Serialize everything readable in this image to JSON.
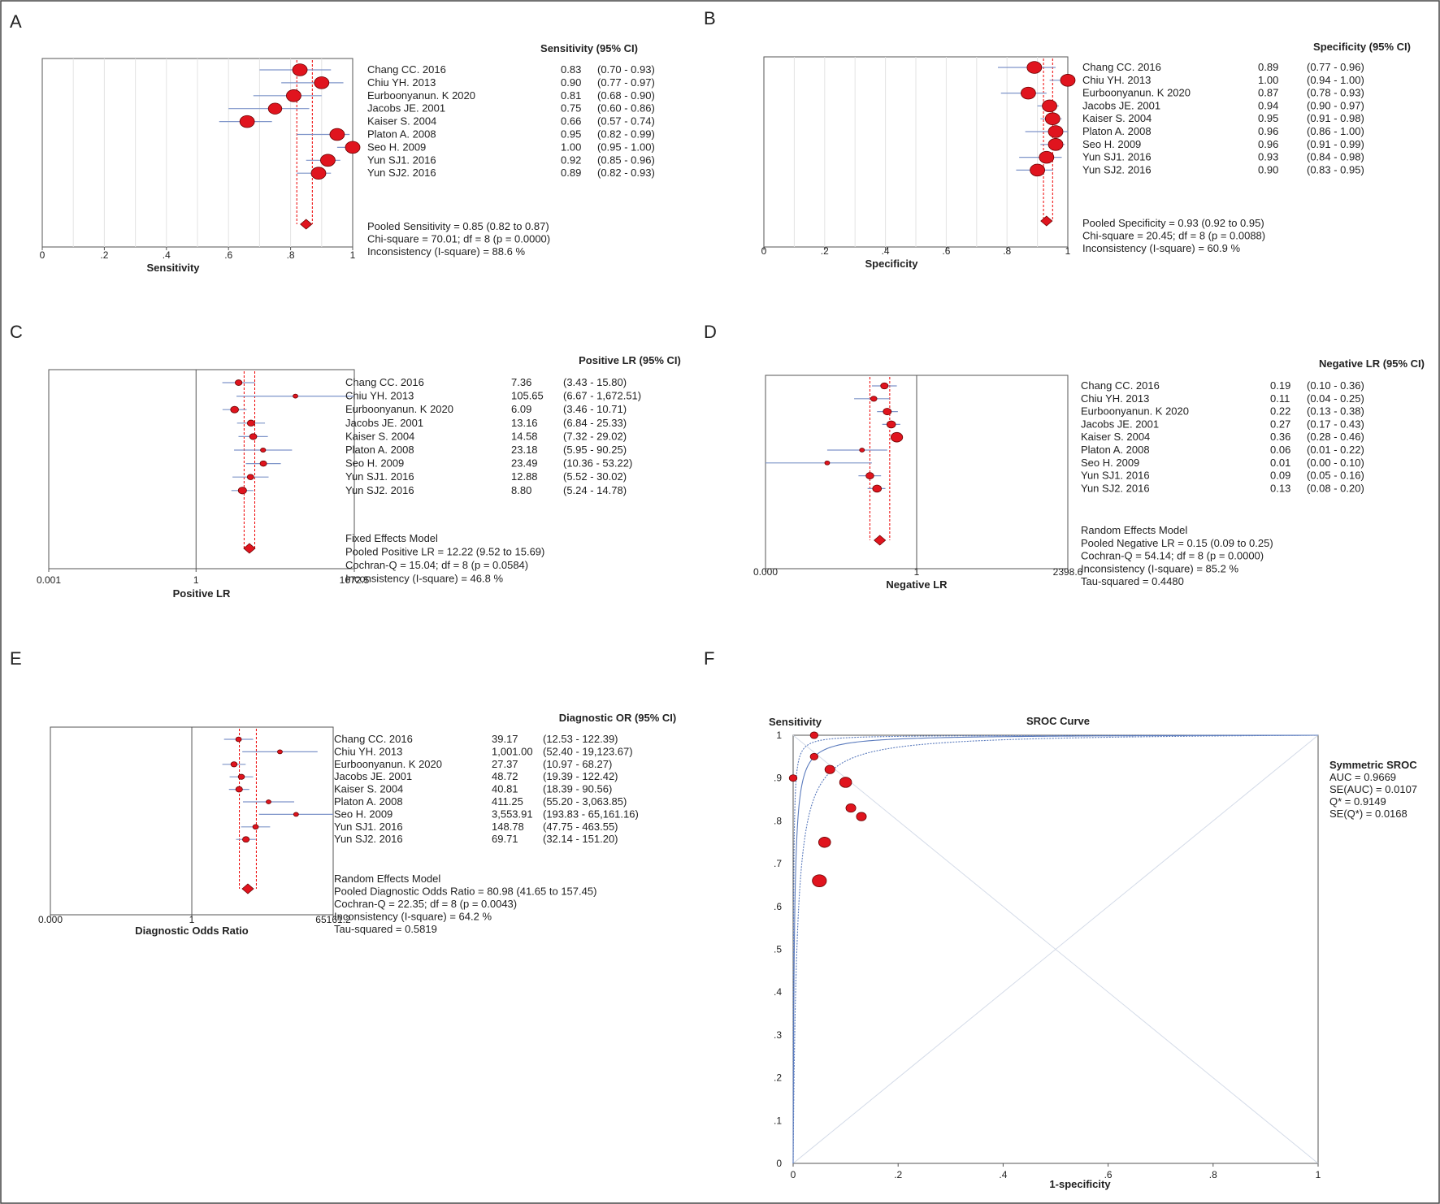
{
  "panels": [
    {
      "letter": "A",
      "type": "forest",
      "scale": "linear",
      "header": "Sensitivity (95% CI)",
      "xlabel": "Sensitivity",
      "ticks": [
        {
          "v": 0,
          "l": "0"
        },
        {
          "v": 0.2,
          "l": ".2"
        },
        {
          "v": 0.4,
          "l": ".4"
        },
        {
          "v": 0.6,
          "l": ".6"
        },
        {
          "v": 0.8,
          "l": ".8"
        },
        {
          "v": 1,
          "l": "1"
        }
      ],
      "min": 0,
      "max": 1,
      "pooled": {
        "est": 0.85,
        "lo": 0.82,
        "hi": 0.87
      },
      "summary": [
        "Pooled Sensitivity = 0.85 (0.82 to 0.87)",
        "Chi-square = 70.01; df = 8 (p = 0.0000)",
        "Inconsistency (I-square) = 88.6 %"
      ],
      "studies": [
        {
          "name": "Chang CC. 2016",
          "est": 0.83,
          "lo": 0.7,
          "hi": 0.93,
          "v": "0.83",
          "ci": "(0.70 - 0.93)"
        },
        {
          "name": "Chiu YH. 2013",
          "est": 0.9,
          "lo": 0.77,
          "hi": 0.97,
          "v": "0.90",
          "ci": "(0.77 - 0.97)"
        },
        {
          "name": "Eurboonyanun. K 2020",
          "est": 0.81,
          "lo": 0.68,
          "hi": 0.9,
          "v": "0.81",
          "ci": "(0.68 - 0.90)"
        },
        {
          "name": "Jacobs JE. 2001",
          "est": 0.75,
          "lo": 0.6,
          "hi": 0.86,
          "v": "0.75",
          "ci": "(0.60 - 0.86)"
        },
        {
          "name": "Kaiser S. 2004",
          "est": 0.66,
          "lo": 0.57,
          "hi": 0.74,
          "v": "0.66",
          "ci": "(0.57 - 0.74)"
        },
        {
          "name": "Platon A. 2008",
          "est": 0.95,
          "lo": 0.82,
          "hi": 0.99,
          "v": "0.95",
          "ci": "(0.82 - 0.99)"
        },
        {
          "name": "Seo H. 2009",
          "est": 1.0,
          "lo": 0.95,
          "hi": 1.0,
          "v": "1.00",
          "ci": "(0.95 - 1.00)"
        },
        {
          "name": "Yun SJ1. 2016",
          "est": 0.92,
          "lo": 0.85,
          "hi": 0.96,
          "v": "0.92",
          "ci": "(0.85 - 0.96)"
        },
        {
          "name": "Yun SJ2. 2016",
          "est": 0.89,
          "lo": 0.82,
          "hi": 0.93,
          "v": "0.89",
          "ci": "(0.82 - 0.93)"
        }
      ]
    },
    {
      "letter": "B",
      "type": "forest",
      "scale": "linear",
      "header": "Specificity (95% CI)",
      "xlabel": "Specificity",
      "ticks": [
        {
          "v": 0,
          "l": "0"
        },
        {
          "v": 0.2,
          "l": ".2"
        },
        {
          "v": 0.4,
          "l": ".4"
        },
        {
          "v": 0.6,
          "l": ".6"
        },
        {
          "v": 0.8,
          "l": ".8"
        },
        {
          "v": 1,
          "l": "1"
        }
      ],
      "min": 0,
      "max": 1,
      "pooled": {
        "est": 0.93,
        "lo": 0.92,
        "hi": 0.95
      },
      "summary": [
        "Pooled Specificity = 0.93 (0.92 to 0.95)",
        "Chi-square = 20.45; df = 8 (p = 0.0088)",
        "Inconsistency (I-square) = 60.9 %"
      ],
      "studies": [
        {
          "name": "Chang CC. 2016",
          "est": 0.89,
          "lo": 0.77,
          "hi": 0.96,
          "v": "0.89",
          "ci": "(0.77 - 0.96)"
        },
        {
          "name": "Chiu YH. 2013",
          "est": 1.0,
          "lo": 0.94,
          "hi": 1.0,
          "v": "1.00",
          "ci": "(0.94 - 1.00)"
        },
        {
          "name": "Eurboonyanun. K 2020",
          "est": 0.87,
          "lo": 0.78,
          "hi": 0.93,
          "v": "0.87",
          "ci": "(0.78 - 0.93)"
        },
        {
          "name": "Jacobs JE. 2001",
          "est": 0.94,
          "lo": 0.9,
          "hi": 0.97,
          "v": "0.94",
          "ci": "(0.90 - 0.97)"
        },
        {
          "name": "Kaiser S. 2004",
          "est": 0.95,
          "lo": 0.91,
          "hi": 0.98,
          "v": "0.95",
          "ci": "(0.91 - 0.98)"
        },
        {
          "name": "Platon A. 2008",
          "est": 0.96,
          "lo": 0.86,
          "hi": 1.0,
          "v": "0.96",
          "ci": "(0.86 - 1.00)"
        },
        {
          "name": "Seo H. 2009",
          "est": 0.96,
          "lo": 0.91,
          "hi": 0.99,
          "v": "0.96",
          "ci": "(0.91 - 0.99)"
        },
        {
          "name": "Yun SJ1. 2016",
          "est": 0.93,
          "lo": 0.84,
          "hi": 0.98,
          "v": "0.93",
          "ci": "(0.84 - 0.98)"
        },
        {
          "name": "Yun SJ2. 2016",
          "est": 0.9,
          "lo": 0.83,
          "hi": 0.95,
          "v": "0.90",
          "ci": "(0.83 - 0.95)"
        }
      ]
    },
    {
      "letter": "C",
      "type": "forest",
      "scale": "log",
      "header": "Positive LR (95% CI)",
      "xlabel": "Positive LR",
      "ticks": [
        {
          "v": 0.001,
          "l": "0.001"
        },
        {
          "v": 1,
          "l": "1"
        },
        {
          "v": 1672.5,
          "l": "1672.5"
        }
      ],
      "min": 0.001,
      "max": 1672.5,
      "pooled": {
        "est": 12.22,
        "lo": 9.52,
        "hi": 15.69
      },
      "summary": [
        "Fixed Effects Model",
        "Pooled Positive LR = 12.22 (9.52 to 15.69)",
        "Cochran-Q = 15.04; df = 8 (p = 0.0584)",
        "Inconsistency (I-square) = 46.8 %"
      ],
      "studies": [
        {
          "name": "Chang CC. 2016",
          "est": 7.36,
          "lo": 3.43,
          "hi": 15.8,
          "v": "7.36",
          "ci": "(3.43 - 15.80)"
        },
        {
          "name": "Chiu YH. 2013",
          "est": 105.65,
          "lo": 6.67,
          "hi": 1672.51,
          "v": "105.65",
          "ci": "(6.67 - 1,672.51)"
        },
        {
          "name": "Eurboonyanun. K 2020",
          "est": 6.09,
          "lo": 3.46,
          "hi": 10.71,
          "v": "6.09",
          "ci": "(3.46 - 10.71)"
        },
        {
          "name": "Jacobs JE. 2001",
          "est": 13.16,
          "lo": 6.84,
          "hi": 25.33,
          "v": "13.16",
          "ci": "(6.84 - 25.33)"
        },
        {
          "name": "Kaiser S. 2004",
          "est": 14.58,
          "lo": 7.32,
          "hi": 29.02,
          "v": "14.58",
          "ci": "(7.32 - 29.02)"
        },
        {
          "name": "Platon A. 2008",
          "est": 23.18,
          "lo": 5.95,
          "hi": 90.25,
          "v": "23.18",
          "ci": "(5.95 - 90.25)"
        },
        {
          "name": "Seo H. 2009",
          "est": 23.49,
          "lo": 10.36,
          "hi": 53.22,
          "v": "23.49",
          "ci": "(10.36 - 53.22)"
        },
        {
          "name": "Yun SJ1. 2016",
          "est": 12.88,
          "lo": 5.52,
          "hi": 30.02,
          "v": "12.88",
          "ci": "(5.52 - 30.02)"
        },
        {
          "name": "Yun SJ2. 2016",
          "est": 8.8,
          "lo": 5.24,
          "hi": 14.78,
          "v": "8.80",
          "ci": "(5.24 - 14.78)"
        }
      ]
    },
    {
      "letter": "D",
      "type": "forest",
      "scale": "log",
      "header": "Negative LR (95% CI)",
      "xlabel": "Negative LR",
      "ticks": [
        {
          "v": 0.000417,
          "l": "0.000"
        },
        {
          "v": 1,
          "l": "1"
        },
        {
          "v": 2398.6,
          "l": "2398.6"
        }
      ],
      "min": 0.000417,
      "max": 2398.6,
      "pooled": {
        "est": 0.15,
        "lo": 0.09,
        "hi": 0.25
      },
      "summary": [
        "Random Effects Model",
        "Pooled Negative LR = 0.15 (0.09 to 0.25)",
        "Cochran-Q = 54.14; df = 8 (p = 0.0000)",
        "Inconsistency (I-square) = 85.2 %",
        "Tau-squared = 0.4480"
      ],
      "studies": [
        {
          "name": "Chang CC. 2016",
          "est": 0.19,
          "lo": 0.1,
          "hi": 0.36,
          "v": "0.19",
          "ci": "(0.10 - 0.36)"
        },
        {
          "name": "Chiu YH. 2013",
          "est": 0.11,
          "lo": 0.04,
          "hi": 0.25,
          "v": "0.11",
          "ci": "(0.04 - 0.25)"
        },
        {
          "name": "Eurboonyanun. K 2020",
          "est": 0.22,
          "lo": 0.13,
          "hi": 0.38,
          "v": "0.22",
          "ci": "(0.13 - 0.38)"
        },
        {
          "name": "Jacobs JE. 2001",
          "est": 0.27,
          "lo": 0.17,
          "hi": 0.43,
          "v": "0.27",
          "ci": "(0.17 - 0.43)"
        },
        {
          "name": "Kaiser S. 2004",
          "est": 0.36,
          "lo": 0.28,
          "hi": 0.46,
          "v": "0.36",
          "ci": "(0.28 - 0.46)"
        },
        {
          "name": "Platon A. 2008",
          "est": 0.06,
          "lo": 0.01,
          "hi": 0.22,
          "v": "0.06",
          "ci": "(0.01 - 0.22)"
        },
        {
          "name": "Seo H. 2009",
          "est": 0.01,
          "lo": 0.0004,
          "hi": 0.1,
          "v": "0.01",
          "ci": "(0.00 - 0.10)"
        },
        {
          "name": "Yun SJ1. 2016",
          "est": 0.09,
          "lo": 0.05,
          "hi": 0.16,
          "v": "0.09",
          "ci": "(0.05 - 0.16)"
        },
        {
          "name": "Yun SJ2. 2016",
          "est": 0.13,
          "lo": 0.08,
          "hi": 0.2,
          "v": "0.13",
          "ci": "(0.08 - 0.20)"
        }
      ]
    },
    {
      "letter": "E",
      "type": "forest",
      "scale": "log",
      "header": "Diagnostic OR (95% CI)",
      "xlabel": "Diagnostic Odds Ratio",
      "ticks": [
        {
          "v": 1.53e-05,
          "l": "0.000"
        },
        {
          "v": 1,
          "l": "1"
        },
        {
          "v": 65161.2,
          "l": "65161.2"
        }
      ],
      "min": 1.53e-05,
      "max": 65161.2,
      "pooled": {
        "est": 80.98,
        "lo": 41.65,
        "hi": 157.45
      },
      "summary": [
        "Random Effects Model",
        "Pooled Diagnostic Odds Ratio = 80.98 (41.65 to 157.45)",
        "Cochran-Q = 22.35; df = 8 (p = 0.0043)",
        "Inconsistency (I-square) = 64.2 %",
        "Tau-squared = 0.5819"
      ],
      "studies": [
        {
          "name": "Chang CC. 2016",
          "est": 39.17,
          "lo": 12.53,
          "hi": 122.39,
          "v": "39.17",
          "ci": "(12.53 - 122.39)"
        },
        {
          "name": "Chiu YH. 2013",
          "est": 1001.0,
          "lo": 52.4,
          "hi": 19123.67,
          "v": "1,001.00",
          "ci": "(52.40 - 19,123.67)"
        },
        {
          "name": "Eurboonyanun. K 2020",
          "est": 27.37,
          "lo": 10.97,
          "hi": 68.27,
          "v": "27.37",
          "ci": "(10.97 - 68.27)"
        },
        {
          "name": "Jacobs JE. 2001",
          "est": 48.72,
          "lo": 19.39,
          "hi": 122.42,
          "v": "48.72",
          "ci": "(19.39 - 122.42)"
        },
        {
          "name": "Kaiser S. 2004",
          "est": 40.81,
          "lo": 18.39,
          "hi": 90.56,
          "v": "40.81",
          "ci": "(18.39 - 90.56)"
        },
        {
          "name": "Platon A. 2008",
          "est": 411.25,
          "lo": 55.2,
          "hi": 3063.85,
          "v": "411.25",
          "ci": "(55.20 - 3,063.85)"
        },
        {
          "name": "Seo H. 2009",
          "est": 3553.91,
          "lo": 193.83,
          "hi": 65161.16,
          "v": "3,553.91",
          "ci": "(193.83 - 65,161.16)"
        },
        {
          "name": "Yun SJ1. 2016",
          "est": 148.78,
          "lo": 47.75,
          "hi": 463.55,
          "v": "148.78",
          "ci": "(47.75 - 463.55)"
        },
        {
          "name": "Yun SJ2. 2016",
          "est": 69.71,
          "lo": 32.14,
          "hi": 151.2,
          "v": "69.71",
          "ci": "(32.14 - 151.20)"
        }
      ]
    }
  ],
  "sroc": {
    "letter": "F",
    "title": "SROC Curve",
    "ylabel": "Sensitivity",
    "xlabel": "1-specificity",
    "xticks": [
      {
        "v": 0,
        "l": "0"
      },
      {
        "v": 0.2,
        "l": ".2"
      },
      {
        "v": 0.4,
        "l": ".4"
      },
      {
        "v": 0.6,
        "l": ".6"
      },
      {
        "v": 0.8,
        "l": ".8"
      },
      {
        "v": 1,
        "l": "1"
      }
    ],
    "yticks": [
      {
        "v": 0,
        "l": "0"
      },
      {
        "v": 0.1,
        "l": ".1"
      },
      {
        "v": 0.2,
        "l": ".2"
      },
      {
        "v": 0.3,
        "l": ".3"
      },
      {
        "v": 0.4,
        "l": ".4"
      },
      {
        "v": 0.5,
        "l": ".5"
      },
      {
        "v": 0.6,
        "l": ".6"
      },
      {
        "v": 0.7,
        "l": ".7"
      },
      {
        "v": 0.8,
        "l": ".8"
      },
      {
        "v": 0.9,
        "l": ".9"
      },
      {
        "v": 1,
        "l": "1"
      }
    ],
    "legend_title": "Symmetric SROC",
    "legend_lines": [
      "AUC = 0.9669",
      "SE(AUC) = 0.0107",
      "Q* = 0.9149",
      "SE(Q*) = 0.0168"
    ]
  },
  "chart_data": [
    {
      "type": "scatter",
      "title": "",
      "xlabel": "Sensitivity",
      "series": [
        {
          "values": [
            0.83,
            0.9,
            0.81,
            0.75,
            0.66,
            0.95,
            1.0,
            0.92,
            0.89
          ]
        }
      ]
    },
    {
      "type": "scatter",
      "title": "",
      "xlabel": "Specificity",
      "series": [
        {
          "values": [
            0.89,
            1.0,
            0.87,
            0.94,
            0.95,
            0.96,
            0.96,
            0.93,
            0.9
          ]
        }
      ]
    },
    {
      "type": "scatter",
      "title": "",
      "xlabel": "Positive LR",
      "series": [
        {
          "values": [
            7.36,
            105.65,
            6.09,
            13.16,
            14.58,
            23.18,
            23.49,
            12.88,
            8.8
          ]
        }
      ]
    },
    {
      "type": "scatter",
      "title": "",
      "xlabel": "Negative LR",
      "series": [
        {
          "values": [
            0.19,
            0.11,
            0.22,
            0.27,
            0.36,
            0.06,
            0.01,
            0.09,
            0.13
          ]
        }
      ]
    },
    {
      "type": "scatter",
      "title": "",
      "xlabel": "Diagnostic Odds Ratio",
      "series": [
        {
          "values": [
            39.17,
            1001.0,
            27.37,
            48.72,
            40.81,
            411.25,
            3553.91,
            148.78,
            69.71
          ]
        }
      ]
    },
    {
      "type": "scatter",
      "title": "SROC Curve",
      "xlabel": "1-specificity",
      "ylabel": "Sensitivity",
      "xlim": [
        0,
        1
      ],
      "ylim": [
        0,
        1
      ],
      "points": [
        {
          "x": 0.11,
          "y": 0.83
        },
        {
          "x": 0.0,
          "y": 0.9
        },
        {
          "x": 0.13,
          "y": 0.81
        },
        {
          "x": 0.06,
          "y": 0.75
        },
        {
          "x": 0.05,
          "y": 0.66
        },
        {
          "x": 0.04,
          "y": 0.95
        },
        {
          "x": 0.04,
          "y": 1.0
        },
        {
          "x": 0.07,
          "y": 0.92
        },
        {
          "x": 0.1,
          "y": 0.89
        }
      ],
      "sizes": [
        2,
        1,
        2,
        3,
        4,
        1,
        1,
        2,
        3
      ],
      "auc": 0.9669,
      "q_star": 0.9149
    }
  ]
}
